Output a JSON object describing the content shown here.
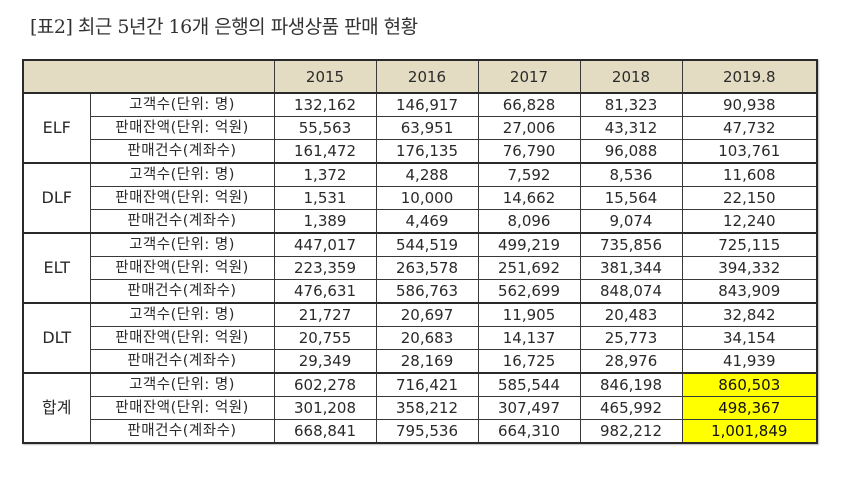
{
  "title": "[표2] 최근 5년간 16개 은행의 파생상품 판매 현황",
  "table": {
    "header": {
      "corner": "",
      "years": [
        "2015",
        "2016",
        "2017",
        "2018",
        "2019.8"
      ]
    },
    "groups": [
      {
        "name": "ELF",
        "rows": [
          {
            "metric": "고객수(단위: 명)",
            "values": [
              "132,162",
              "146,917",
              "66,828",
              "81,323",
              "90,938"
            ]
          },
          {
            "metric": "판매잔액(단위: 억원)",
            "values": [
              "55,563",
              "63,951",
              "27,006",
              "43,312",
              "47,732"
            ]
          },
          {
            "metric": "판매건수(계좌수)",
            "values": [
              "161,472",
              "176,135",
              "76,790",
              "96,088",
              "103,761"
            ]
          }
        ]
      },
      {
        "name": "DLF",
        "rows": [
          {
            "metric": "고객수(단위: 명)",
            "values": [
              "1,372",
              "4,288",
              "7,592",
              "8,536",
              "11,608"
            ]
          },
          {
            "metric": "판매잔액(단위: 억원)",
            "values": [
              "1,531",
              "10,000",
              "14,662",
              "15,564",
              "22,150"
            ]
          },
          {
            "metric": "판매건수(계좌수)",
            "values": [
              "1,389",
              "4,469",
              "8,096",
              "9,074",
              "12,240"
            ]
          }
        ]
      },
      {
        "name": "ELT",
        "rows": [
          {
            "metric": "고객수(단위: 명)",
            "values": [
              "447,017",
              "544,519",
              "499,219",
              "735,856",
              "725,115"
            ]
          },
          {
            "metric": "판매잔액(단위: 억원)",
            "values": [
              "223,359",
              "263,578",
              "251,692",
              "381,344",
              "394,332"
            ]
          },
          {
            "metric": "판매건수(계좌수)",
            "values": [
              "476,631",
              "586,763",
              "562,699",
              "848,074",
              "843,909"
            ]
          }
        ]
      },
      {
        "name": "DLT",
        "rows": [
          {
            "metric": "고객수(단위: 명)",
            "values": [
              "21,727",
              "20,697",
              "11,905",
              "20,483",
              "32,842"
            ]
          },
          {
            "metric": "판매잔액(단위: 억원)",
            "values": [
              "20,755",
              "20,683",
              "14,137",
              "25,773",
              "34,154"
            ]
          },
          {
            "metric": "판매건수(계좌수)",
            "values": [
              "29,349",
              "28,169",
              "16,725",
              "28,976",
              "41,939"
            ]
          }
        ]
      },
      {
        "name": "합계",
        "rows": [
          {
            "metric": "고객수(단위: 명)",
            "values": [
              "602,278",
              "716,421",
              "585,544",
              "846,198",
              "860,503"
            ]
          },
          {
            "metric": "판매잔액(단위: 억원)",
            "values": [
              "301,208",
              "358,212",
              "307,497",
              "465,992",
              "498,367"
            ]
          },
          {
            "metric": "판매건수(계좌수)",
            "values": [
              "668,841",
              "795,536",
              "664,310",
              "982,212",
              "1,001,849"
            ]
          }
        ]
      }
    ]
  },
  "colors": {
    "header_background": "#e3dcc2",
    "highlight": "#ffff00",
    "border": "#3a3a3a"
  },
  "highlighted_cells": [
    "합계/2019.8/고객수",
    "합계/2019.8/판매잔액",
    "합계/2019.8/판매건수"
  ]
}
